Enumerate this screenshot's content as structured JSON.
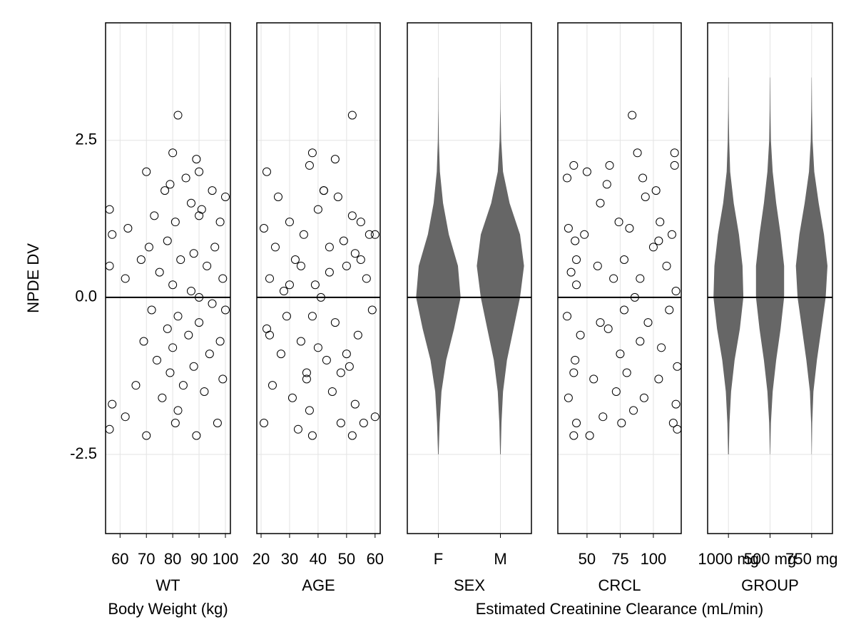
{
  "chart_data": [
    {
      "type": "scatter",
      "ylabel": "NPDE DV",
      "xlabel": "WT",
      "x_description": "Body Weight (kg)",
      "color": "#000000",
      "grid": true,
      "hline": 0,
      "xlim": [
        54.5,
        101.9
      ],
      "xticks": [
        60,
        70,
        80,
        90,
        100
      ],
      "ylim": [
        -3.76,
        4.37
      ],
      "yticks": [
        -2.5,
        {
          "value": 0,
          "label": "0.0"
        },
        2.5
      ],
      "x": [
        56,
        56,
        56,
        57,
        57,
        62,
        62,
        63,
        66,
        68,
        69,
        70,
        70,
        71,
        72,
        73,
        74,
        75,
        76,
        77,
        78,
        78,
        79,
        79,
        80,
        80,
        80,
        81,
        81,
        82,
        82,
        83,
        84,
        85,
        86,
        87,
        87,
        88,
        88,
        89,
        89,
        90,
        90,
        90,
        91,
        92,
        93,
        94,
        95,
        95,
        96,
        97,
        98,
        98,
        99,
        99,
        100,
        100,
        82,
        90
      ],
      "values": [
        1.4,
        -2.1,
        0.5,
        -1.7,
        1.0,
        0.3,
        -1.9,
        1.1,
        -1.4,
        0.6,
        -0.7,
        2.0,
        -2.2,
        0.8,
        -0.2,
        1.3,
        -1.0,
        0.4,
        -1.6,
        1.7,
        -0.5,
        0.9,
        1.8,
        -1.2,
        0.2,
        -0.8,
        2.3,
        -2.0,
        1.2,
        2.9,
        -0.3,
        0.6,
        -1.4,
        1.9,
        -0.6,
        0.1,
        1.5,
        -1.1,
        0.7,
        2.2,
        -2.2,
        1.3,
        -0.4,
        0.0,
        1.4,
        -1.5,
        0.5,
        -0.9,
        1.7,
        -0.1,
        0.8,
        -2.0,
        1.2,
        -0.7,
        0.3,
        -1.3,
        1.6,
        -0.2,
        -1.8,
        2.0
      ]
    },
    {
      "type": "scatter",
      "xlabel": "AGE",
      "color": "#000000",
      "grid": true,
      "hline": 0,
      "xlim": [
        18.5,
        61.8
      ],
      "xticks": [
        20,
        30,
        40,
        50,
        60
      ],
      "ylim": [
        -3.76,
        4.37
      ],
      "yticks": [
        -2.5,
        0,
        2.5
      ],
      "x": [
        21,
        21,
        22,
        22,
        23,
        24,
        25,
        26,
        27,
        28,
        29,
        30,
        31,
        32,
        33,
        34,
        34,
        35,
        36,
        37,
        37,
        38,
        38,
        39,
        40,
        40,
        41,
        42,
        43,
        44,
        45,
        46,
        46,
        47,
        48,
        49,
        50,
        51,
        52,
        52,
        52,
        53,
        53,
        54,
        55,
        56,
        57,
        58,
        59,
        60,
        60,
        23,
        30,
        36,
        44,
        50,
        55,
        38,
        42,
        48
      ],
      "values": [
        -2.0,
        1.1,
        2.0,
        -0.5,
        0.3,
        -1.4,
        0.8,
        1.6,
        -0.9,
        0.1,
        -0.3,
        1.2,
        -1.6,
        0.6,
        -2.1,
        0.5,
        -0.7,
        1.0,
        -1.2,
        2.1,
        -1.8,
        2.3,
        -2.2,
        0.2,
        -0.8,
        1.4,
        0.0,
        1.7,
        -1.0,
        0.4,
        -1.5,
        2.2,
        -0.4,
        1.6,
        -2.0,
        0.9,
        0.5,
        -1.1,
        2.9,
        -2.2,
        1.3,
        -1.7,
        0.7,
        -0.6,
        1.2,
        -2.0,
        0.3,
        1.0,
        -0.2,
        -1.9,
        1.0,
        -0.6,
        0.2,
        -1.3,
        0.8,
        -0.9,
        0.6,
        -0.3,
        1.7,
        -1.2
      ]
    },
    {
      "type": "violin",
      "xlabel": "SEX",
      "color": "#666666",
      "grid": true,
      "hline": 0,
      "ylim": [
        -3.76,
        4.37
      ],
      "yticks": [
        -2.5,
        0,
        2.5
      ],
      "categories": [
        "F",
        "M"
      ],
      "y_grid": [
        -2.5,
        -2,
        -1.5,
        -1,
        -0.5,
        0,
        0.5,
        1,
        1.5,
        2,
        2.5,
        3,
        3.5
      ],
      "density": [
        [
          0.01,
          0.05,
          0.12,
          0.3,
          0.6,
          0.85,
          0.75,
          0.4,
          0.18,
          0.06,
          0.02,
          0.005,
          0.002
        ],
        [
          0.01,
          0.04,
          0.1,
          0.25,
          0.5,
          0.75,
          0.9,
          0.75,
          0.35,
          0.1,
          0.03,
          0.005,
          0
        ]
      ]
    },
    {
      "type": "scatter",
      "xlabel": "CRCL",
      "x_description": "Estimated Creatinine Clearance (mL/min)",
      "color": "#000000",
      "grid": true,
      "hline": 0,
      "xlim": [
        28,
        121
      ],
      "xticks": [
        50,
        75,
        100
      ],
      "ylim": [
        -3.76,
        4.37
      ],
      "yticks": [
        -2.5,
        0,
        2.5
      ],
      "x": [
        35,
        35,
        36,
        36,
        38,
        40,
        40,
        41,
        41,
        42,
        42,
        45,
        48,
        50,
        52,
        55,
        58,
        60,
        62,
        65,
        66,
        67,
        70,
        72,
        74,
        75,
        76,
        78,
        80,
        82,
        84,
        85,
        86,
        88,
        90,
        92,
        93,
        94,
        96,
        100,
        102,
        104,
        105,
        106,
        110,
        112,
        114,
        115,
        116,
        117,
        117,
        118,
        40,
        42,
        60,
        78,
        90,
        104,
        116,
        118
      ],
      "values": [
        1.9,
        -0.3,
        1.1,
        -1.6,
        0.4,
        2.1,
        -2.2,
        0.9,
        -1.0,
        -2.0,
        0.2,
        -0.6,
        1.0,
        2.0,
        -2.2,
        -1.3,
        0.5,
        1.5,
        -1.9,
        1.8,
        -0.5,
        2.1,
        0.3,
        -1.5,
        1.2,
        -0.9,
        -2.0,
        0.6,
        -1.2,
        1.1,
        2.9,
        -1.8,
        0.0,
        2.3,
        -0.7,
        1.9,
        -1.6,
        1.6,
        -0.4,
        0.8,
        1.7,
        -1.3,
        1.2,
        -0.8,
        0.5,
        -0.2,
        1.0,
        -2.0,
        2.3,
        -1.7,
        0.1,
        -1.1,
        -1.2,
        0.6,
        -0.4,
        -0.2,
        0.3,
        0.9,
        2.1,
        -2.1
      ]
    },
    {
      "type": "violin",
      "xlabel": "GROUP",
      "color": "#666666",
      "grid": true,
      "hline": 0,
      "ylim": [
        -3.76,
        4.37
      ],
      "yticks": [
        -2.5,
        0,
        2.5
      ],
      "categories": [
        "1000 mg",
        "500 mg",
        "750 mg"
      ],
      "y_grid": [
        -2.5,
        -2,
        -1.5,
        -1,
        -0.5,
        0,
        0.5,
        1,
        1.5,
        2,
        2.5,
        3,
        3.5
      ],
      "density": [
        [
          0.02,
          0.06,
          0.15,
          0.35,
          0.65,
          0.85,
          0.8,
          0.6,
          0.3,
          0.1,
          0.04,
          0.015,
          0.005
        ],
        [
          0.01,
          0.05,
          0.15,
          0.35,
          0.6,
          0.8,
          0.8,
          0.6,
          0.35,
          0.15,
          0.05,
          0.02,
          0.01
        ],
        [
          0.005,
          0.03,
          0.1,
          0.3,
          0.55,
          0.8,
          0.9,
          0.7,
          0.4,
          0.15,
          0.05,
          0.02,
          0.005
        ]
      ]
    }
  ]
}
